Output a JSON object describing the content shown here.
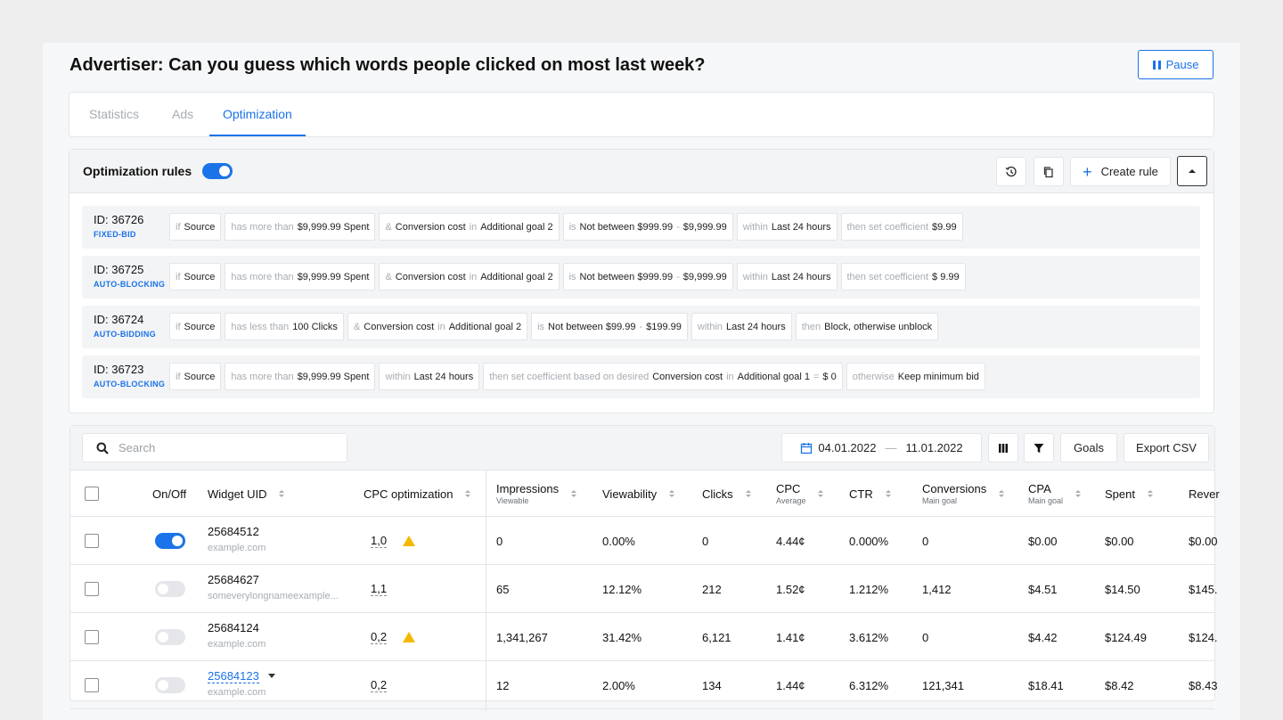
{
  "header": {
    "title": "Advertiser: Can you guess which words people clicked on most last week?",
    "pause_label": "Pause"
  },
  "tabs": [
    {
      "label": "Statistics",
      "active": false
    },
    {
      "label": "Ads",
      "active": false
    },
    {
      "label": "Optimization",
      "active": true
    }
  ],
  "rules_panel": {
    "title": "Optimization rules",
    "enabled": true,
    "create_label": "Create rule",
    "rules": [
      {
        "id": "ID: 36726",
        "type": "FIXED-BID",
        "chips": [
          [
            [
              "m",
              "if"
            ],
            [
              "v",
              "Source"
            ]
          ],
          [
            [
              "m",
              "has more than"
            ],
            [
              "v",
              "$9,999.99 Spent"
            ]
          ],
          [
            [
              "m",
              "&"
            ],
            [
              "v",
              "Conversion cost"
            ],
            [
              "m",
              "in"
            ],
            [
              "v",
              "Additional goal 2"
            ]
          ],
          [
            [
              "m",
              "is"
            ],
            [
              "v",
              "Not between $999.99"
            ],
            [
              "m",
              "-"
            ],
            [
              "v",
              "$9,999.99"
            ]
          ],
          [
            [
              "m",
              "within"
            ],
            [
              "v",
              "Last 24 hours"
            ]
          ],
          [
            [
              "m",
              "then set coefficient"
            ],
            [
              "v",
              "$9.99"
            ]
          ]
        ]
      },
      {
        "id": "ID: 36725",
        "type": "AUTO-BLOCKING",
        "chips": [
          [
            [
              "m",
              "if"
            ],
            [
              "v",
              "Source"
            ]
          ],
          [
            [
              "m",
              "has more than"
            ],
            [
              "v",
              "$9,999.99 Spent"
            ]
          ],
          [
            [
              "m",
              "&"
            ],
            [
              "v",
              "Conversion cost"
            ],
            [
              "m",
              "in"
            ],
            [
              "v",
              "Additional goal 2"
            ]
          ],
          [
            [
              "m",
              "is"
            ],
            [
              "v",
              "Not between $999.99"
            ],
            [
              "m",
              "-"
            ],
            [
              "v",
              "$9,999.99"
            ]
          ],
          [
            [
              "m",
              "within"
            ],
            [
              "v",
              "Last 24 hours"
            ]
          ],
          [
            [
              "m",
              "then set coefficient"
            ],
            [
              "v",
              "$ 9.99"
            ]
          ]
        ]
      },
      {
        "id": "ID: 36724",
        "type": "AUTO-BIDDING",
        "chips": [
          [
            [
              "m",
              "if"
            ],
            [
              "v",
              "Source"
            ]
          ],
          [
            [
              "m",
              "has less than"
            ],
            [
              "v",
              "100 Clicks"
            ]
          ],
          [
            [
              "m",
              "&"
            ],
            [
              "v",
              "Conversion cost"
            ],
            [
              "m",
              "in"
            ],
            [
              "v",
              "Additional goal 2"
            ]
          ],
          [
            [
              "m",
              "is"
            ],
            [
              "v",
              "Not between $99.99"
            ],
            [
              "m",
              "-"
            ],
            [
              "v",
              "$199.99"
            ]
          ],
          [
            [
              "m",
              "within"
            ],
            [
              "v",
              "Last 24 hours"
            ]
          ],
          [
            [
              "m",
              "then"
            ],
            [
              "v",
              "Block, otherwise unblock"
            ]
          ]
        ]
      },
      {
        "id": "ID: 36723",
        "type": "AUTO-BLOCKING",
        "chips": [
          [
            [
              "m",
              "if"
            ],
            [
              "v",
              "Source"
            ]
          ],
          [
            [
              "m",
              "has more than"
            ],
            [
              "v",
              "$9,999.99 Spent"
            ]
          ],
          [
            [
              "m",
              "within"
            ],
            [
              "v",
              "Last 24 hours"
            ]
          ],
          [
            [
              "m",
              "then set coefficient based on desired"
            ],
            [
              "v",
              "Conversion cost"
            ],
            [
              "m",
              "in"
            ],
            [
              "v",
              "Additional goal 1"
            ],
            [
              "m",
              "="
            ],
            [
              "v",
              "$ 0"
            ]
          ],
          [
            [
              "m",
              "otherwise"
            ],
            [
              "v",
              "Keep minimum bid"
            ]
          ]
        ]
      }
    ]
  },
  "toolbar": {
    "search_placeholder": "Search",
    "date_from": "04.01.2022",
    "date_sep": "—",
    "date_to": "11.01.2022",
    "goals_label": "Goals",
    "export_label": "Export CSV"
  },
  "table": {
    "columns": [
      {
        "key": "onoff",
        "label": "On/Off",
        "sub": "",
        "sortable": false
      },
      {
        "key": "uid",
        "label": "Widget UID",
        "sub": "",
        "sortable": true
      },
      {
        "key": "cpcopt",
        "label": "CPC optimization",
        "sub": "",
        "sortable": true
      },
      {
        "key": "impr",
        "label": "Impressions",
        "sub": "Viewable",
        "sortable": true
      },
      {
        "key": "view",
        "label": "Viewability",
        "sub": "",
        "sortable": true
      },
      {
        "key": "clicks",
        "label": "Clicks",
        "sub": "",
        "sortable": true
      },
      {
        "key": "cpc",
        "label": "CPC",
        "sub": "Average",
        "sortable": true
      },
      {
        "key": "ctr",
        "label": "CTR",
        "sub": "",
        "sortable": true
      },
      {
        "key": "conv",
        "label": "Conversions",
        "sub": "Main goal",
        "sortable": true
      },
      {
        "key": "cpa",
        "label": "CPA",
        "sub": "Main goal",
        "sortable": true
      },
      {
        "key": "spent",
        "label": "Spent",
        "sub": "",
        "sortable": true
      },
      {
        "key": "rev",
        "label": "Rever",
        "sub": "",
        "sortable": false
      }
    ],
    "rows": [
      {
        "on": true,
        "uid": "25684512",
        "domain": "example.com",
        "link": false,
        "cpcopt": "1,0",
        "warn": true,
        "impr": "0",
        "view": "0.00%",
        "clicks": "0",
        "cpc": "4.44¢",
        "ctr": "0.000%",
        "conv": "0",
        "cpa": "$0.00",
        "spent": "$0.00",
        "rev": "$0.00"
      },
      {
        "on": false,
        "uid": "25684627",
        "domain": "someverylongnameexample...",
        "link": false,
        "cpcopt": "1,1",
        "warn": false,
        "impr": "65",
        "view": "12.12%",
        "clicks": "212",
        "cpc": "1.52¢",
        "ctr": "1.212%",
        "conv": "1,412",
        "cpa": "$4.51",
        "spent": "$14.50",
        "rev": "$145."
      },
      {
        "on": false,
        "uid": "25684124",
        "domain": "example.com",
        "link": false,
        "cpcopt": "0,2",
        "warn": true,
        "impr": "1,341,267",
        "view": "31.42%",
        "clicks": "6,121",
        "cpc": "1.41¢",
        "ctr": "3.612%",
        "conv": "0",
        "cpa": "$4.42",
        "spent": "$124.49",
        "rev": "$124."
      },
      {
        "on": false,
        "uid": "25684123",
        "domain": "example.com",
        "link": true,
        "cpcopt": "0,2",
        "warn": false,
        "impr": "12",
        "view": "2.00%",
        "clicks": "134",
        "cpc": "1.44¢",
        "ctr": "6.312%",
        "conv": "121,341",
        "cpa": "$18.41",
        "spent": "$8.42",
        "rev": "$8.43"
      }
    ]
  }
}
